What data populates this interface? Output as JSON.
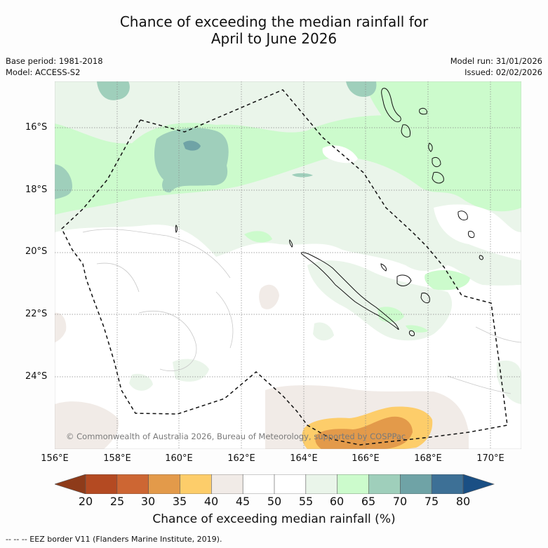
{
  "title": {
    "line1": "Chance of exceeding the median rainfall for",
    "line2": "April to June 2026"
  },
  "info_left": {
    "base_period": "Base period: 1981-2018",
    "model": "Model: ACCESS-S2"
  },
  "info_right": {
    "model_run": "Model run: 31/01/2026",
    "issued": "Issued: 02/02/2026"
  },
  "map": {
    "lat_labels": [
      "16°S",
      "18°S",
      "20°S",
      "22°S",
      "24°S"
    ],
    "lon_labels": [
      "156°E",
      "158°E",
      "160°E",
      "162°E",
      "164°E",
      "166°E",
      "168°E",
      "170°E"
    ],
    "copyright": "© Commonwealth of Australia 2026, Bureau of Meteorology, supported by COSPPac",
    "colors": {
      "c20": "#8e3b1a",
      "c25": "#b44a22",
      "c30": "#cd6633",
      "c35": "#e39a4a",
      "c40": "#fdcd6a",
      "c45": "#f1ebe7",
      "c50": "#ffffff",
      "c55": "#ffffff",
      "c60": "#eaf5ea",
      "c65": "#ccfbcc",
      "c70": "#9fcfbb",
      "c75": "#6fa3a6",
      "c80": "#3d7096",
      "c85": "#1a4f84"
    }
  },
  "colorbar": {
    "ticks": [
      "20",
      "25",
      "30",
      "35",
      "40",
      "45",
      "50",
      "55",
      "60",
      "65",
      "70",
      "75",
      "80"
    ],
    "label": "Chance of exceeding median rainfall (%)"
  },
  "legend": {
    "eez": "-- -- -- EEZ border V11 (Flanders Marine Institute, 2019)."
  }
}
